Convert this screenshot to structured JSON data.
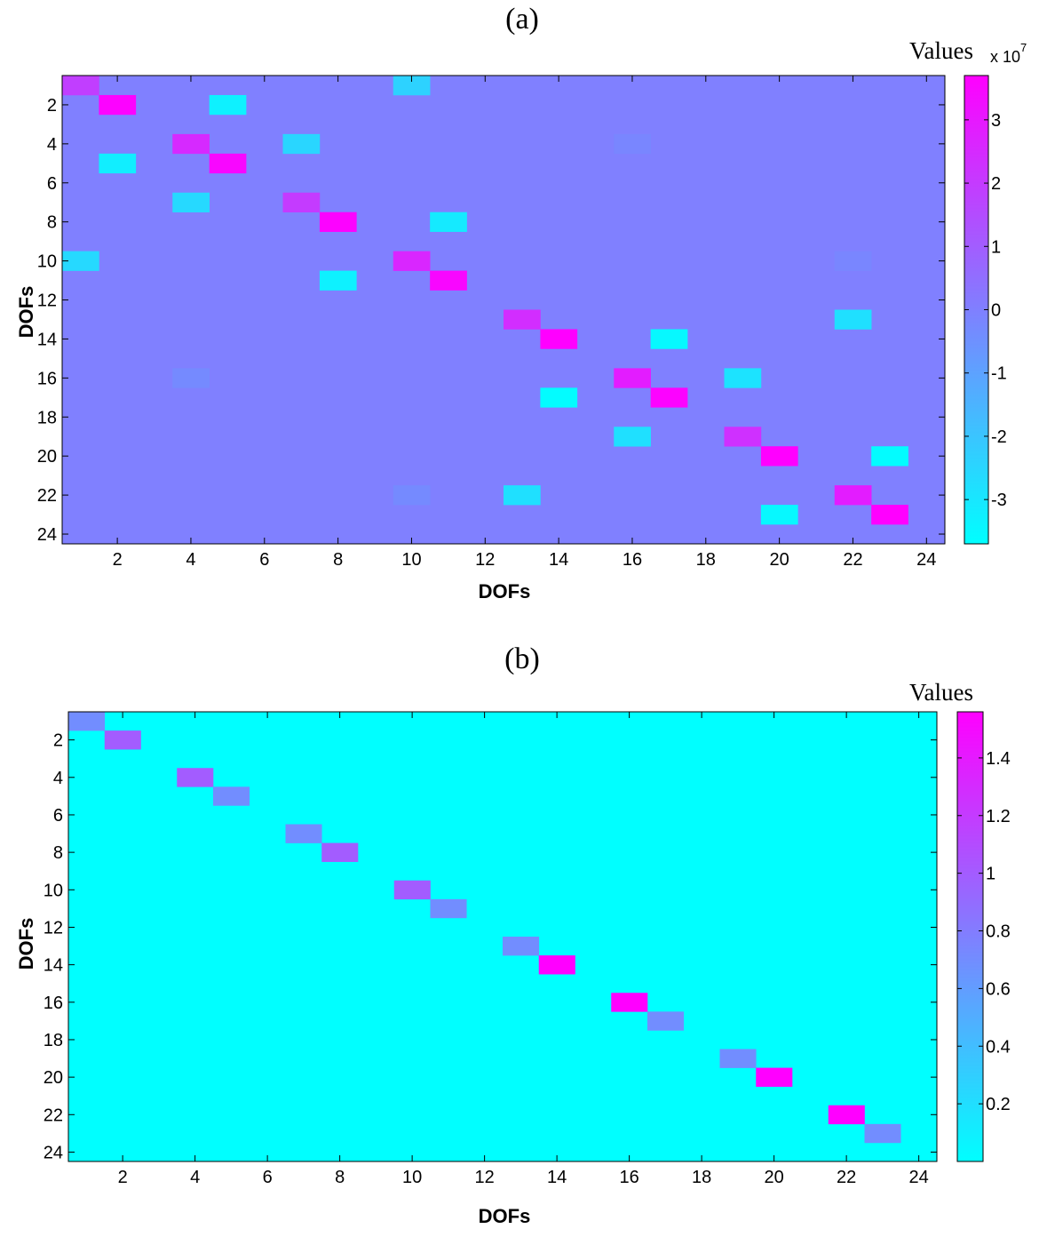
{
  "chart_data": [
    {
      "type": "heatmap",
      "title": "(a)",
      "xlabel": "DOFs",
      "ylabel": "DOFs",
      "xlim": [
        0.5,
        24.5
      ],
      "ylim": [
        24.5,
        0.5
      ],
      "xticks": [
        2,
        4,
        6,
        8,
        10,
        12,
        14,
        16,
        18,
        20,
        22,
        24
      ],
      "yticks": [
        2,
        4,
        6,
        8,
        10,
        12,
        14,
        16,
        18,
        20,
        22,
        24
      ],
      "grid": false,
      "background_value": 0,
      "colorbar": {
        "title": "Values",
        "multiplier_base": "x 10",
        "multiplier_exp": "7",
        "range": [
          -3.7,
          3.7
        ],
        "ticks": [
          -3,
          -2,
          -1,
          0,
          1,
          2,
          3
        ],
        "colors": [
          "#00ffff",
          "#ff00ff"
        ]
      },
      "cells": [
        {
          "row": 1,
          "col": 1,
          "value": 1.9
        },
        {
          "row": 1,
          "col": 10,
          "value": -2.4
        },
        {
          "row": 2,
          "col": 2,
          "value": 3.6
        },
        {
          "row": 2,
          "col": 5,
          "value": -3.3
        },
        {
          "row": 4,
          "col": 4,
          "value": 2.5
        },
        {
          "row": 4,
          "col": 7,
          "value": -2.5
        },
        {
          "row": 4,
          "col": 16,
          "value": -0.2
        },
        {
          "row": 5,
          "col": 2,
          "value": -3.2
        },
        {
          "row": 5,
          "col": 5,
          "value": 3.5
        },
        {
          "row": 7,
          "col": 4,
          "value": -2.6
        },
        {
          "row": 7,
          "col": 7,
          "value": 2.0
        },
        {
          "row": 8,
          "col": 8,
          "value": 3.6
        },
        {
          "row": 8,
          "col": 11,
          "value": -3.1
        },
        {
          "row": 10,
          "col": 1,
          "value": -2.6
        },
        {
          "row": 10,
          "col": 10,
          "value": 2.6
        },
        {
          "row": 10,
          "col": 22,
          "value": -0.2
        },
        {
          "row": 11,
          "col": 8,
          "value": -3.3
        },
        {
          "row": 11,
          "col": 11,
          "value": 3.5
        },
        {
          "row": 13,
          "col": 13,
          "value": 2.4
        },
        {
          "row": 13,
          "col": 22,
          "value": -2.8
        },
        {
          "row": 14,
          "col": 14,
          "value": 3.7
        },
        {
          "row": 14,
          "col": 17,
          "value": -3.5
        },
        {
          "row": 16,
          "col": 4,
          "value": -0.3
        },
        {
          "row": 16,
          "col": 16,
          "value": 2.9
        },
        {
          "row": 16,
          "col": 19,
          "value": -2.9
        },
        {
          "row": 17,
          "col": 14,
          "value": -3.6
        },
        {
          "row": 17,
          "col": 17,
          "value": 3.6
        },
        {
          "row": 19,
          "col": 16,
          "value": -2.8
        },
        {
          "row": 19,
          "col": 19,
          "value": 2.3
        },
        {
          "row": 20,
          "col": 20,
          "value": 3.7
        },
        {
          "row": 20,
          "col": 23,
          "value": -3.6
        },
        {
          "row": 22,
          "col": 10,
          "value": -0.3
        },
        {
          "row": 22,
          "col": 13,
          "value": -2.8
        },
        {
          "row": 22,
          "col": 22,
          "value": 2.9
        },
        {
          "row": 23,
          "col": 20,
          "value": -3.5
        },
        {
          "row": 23,
          "col": 23,
          "value": 3.7
        }
      ]
    },
    {
      "type": "heatmap",
      "title": "(b)",
      "xlabel": "DOFs",
      "ylabel": "DOFs",
      "xlim": [
        0.5,
        24.5
      ],
      "ylim": [
        24.5,
        0.5
      ],
      "xticks": [
        2,
        4,
        6,
        8,
        10,
        12,
        14,
        16,
        18,
        20,
        22,
        24
      ],
      "yticks": [
        2,
        4,
        6,
        8,
        10,
        12,
        14,
        16,
        18,
        20,
        22,
        24
      ],
      "grid": false,
      "background_value": 0,
      "colorbar": {
        "title": "Values",
        "range": [
          0,
          1.56
        ],
        "ticks": [
          0.2,
          0.4,
          0.6,
          0.8,
          1,
          1.2,
          1.4
        ],
        "tick_labels": [
          "0.2",
          "0.4",
          "0.6",
          "0.8",
          "1",
          "1.2",
          "1.4"
        ],
        "colors": [
          "#00ffff",
          "#ff00ff"
        ]
      },
      "cells": [
        {
          "row": 1,
          "col": 1,
          "value": 0.7
        },
        {
          "row": 2,
          "col": 2,
          "value": 1.0
        },
        {
          "row": 4,
          "col": 4,
          "value": 1.0
        },
        {
          "row": 5,
          "col": 5,
          "value": 0.7
        },
        {
          "row": 7,
          "col": 7,
          "value": 0.7
        },
        {
          "row": 8,
          "col": 8,
          "value": 1.0
        },
        {
          "row": 10,
          "col": 10,
          "value": 1.0
        },
        {
          "row": 11,
          "col": 11,
          "value": 0.7
        },
        {
          "row": 13,
          "col": 13,
          "value": 0.7
        },
        {
          "row": 14,
          "col": 14,
          "value": 1.56
        },
        {
          "row": 16,
          "col": 16,
          "value": 1.56
        },
        {
          "row": 17,
          "col": 17,
          "value": 0.7
        },
        {
          "row": 19,
          "col": 19,
          "value": 0.7
        },
        {
          "row": 20,
          "col": 20,
          "value": 1.56
        },
        {
          "row": 22,
          "col": 22,
          "value": 1.56
        },
        {
          "row": 23,
          "col": 23,
          "value": 0.7
        }
      ]
    }
  ]
}
